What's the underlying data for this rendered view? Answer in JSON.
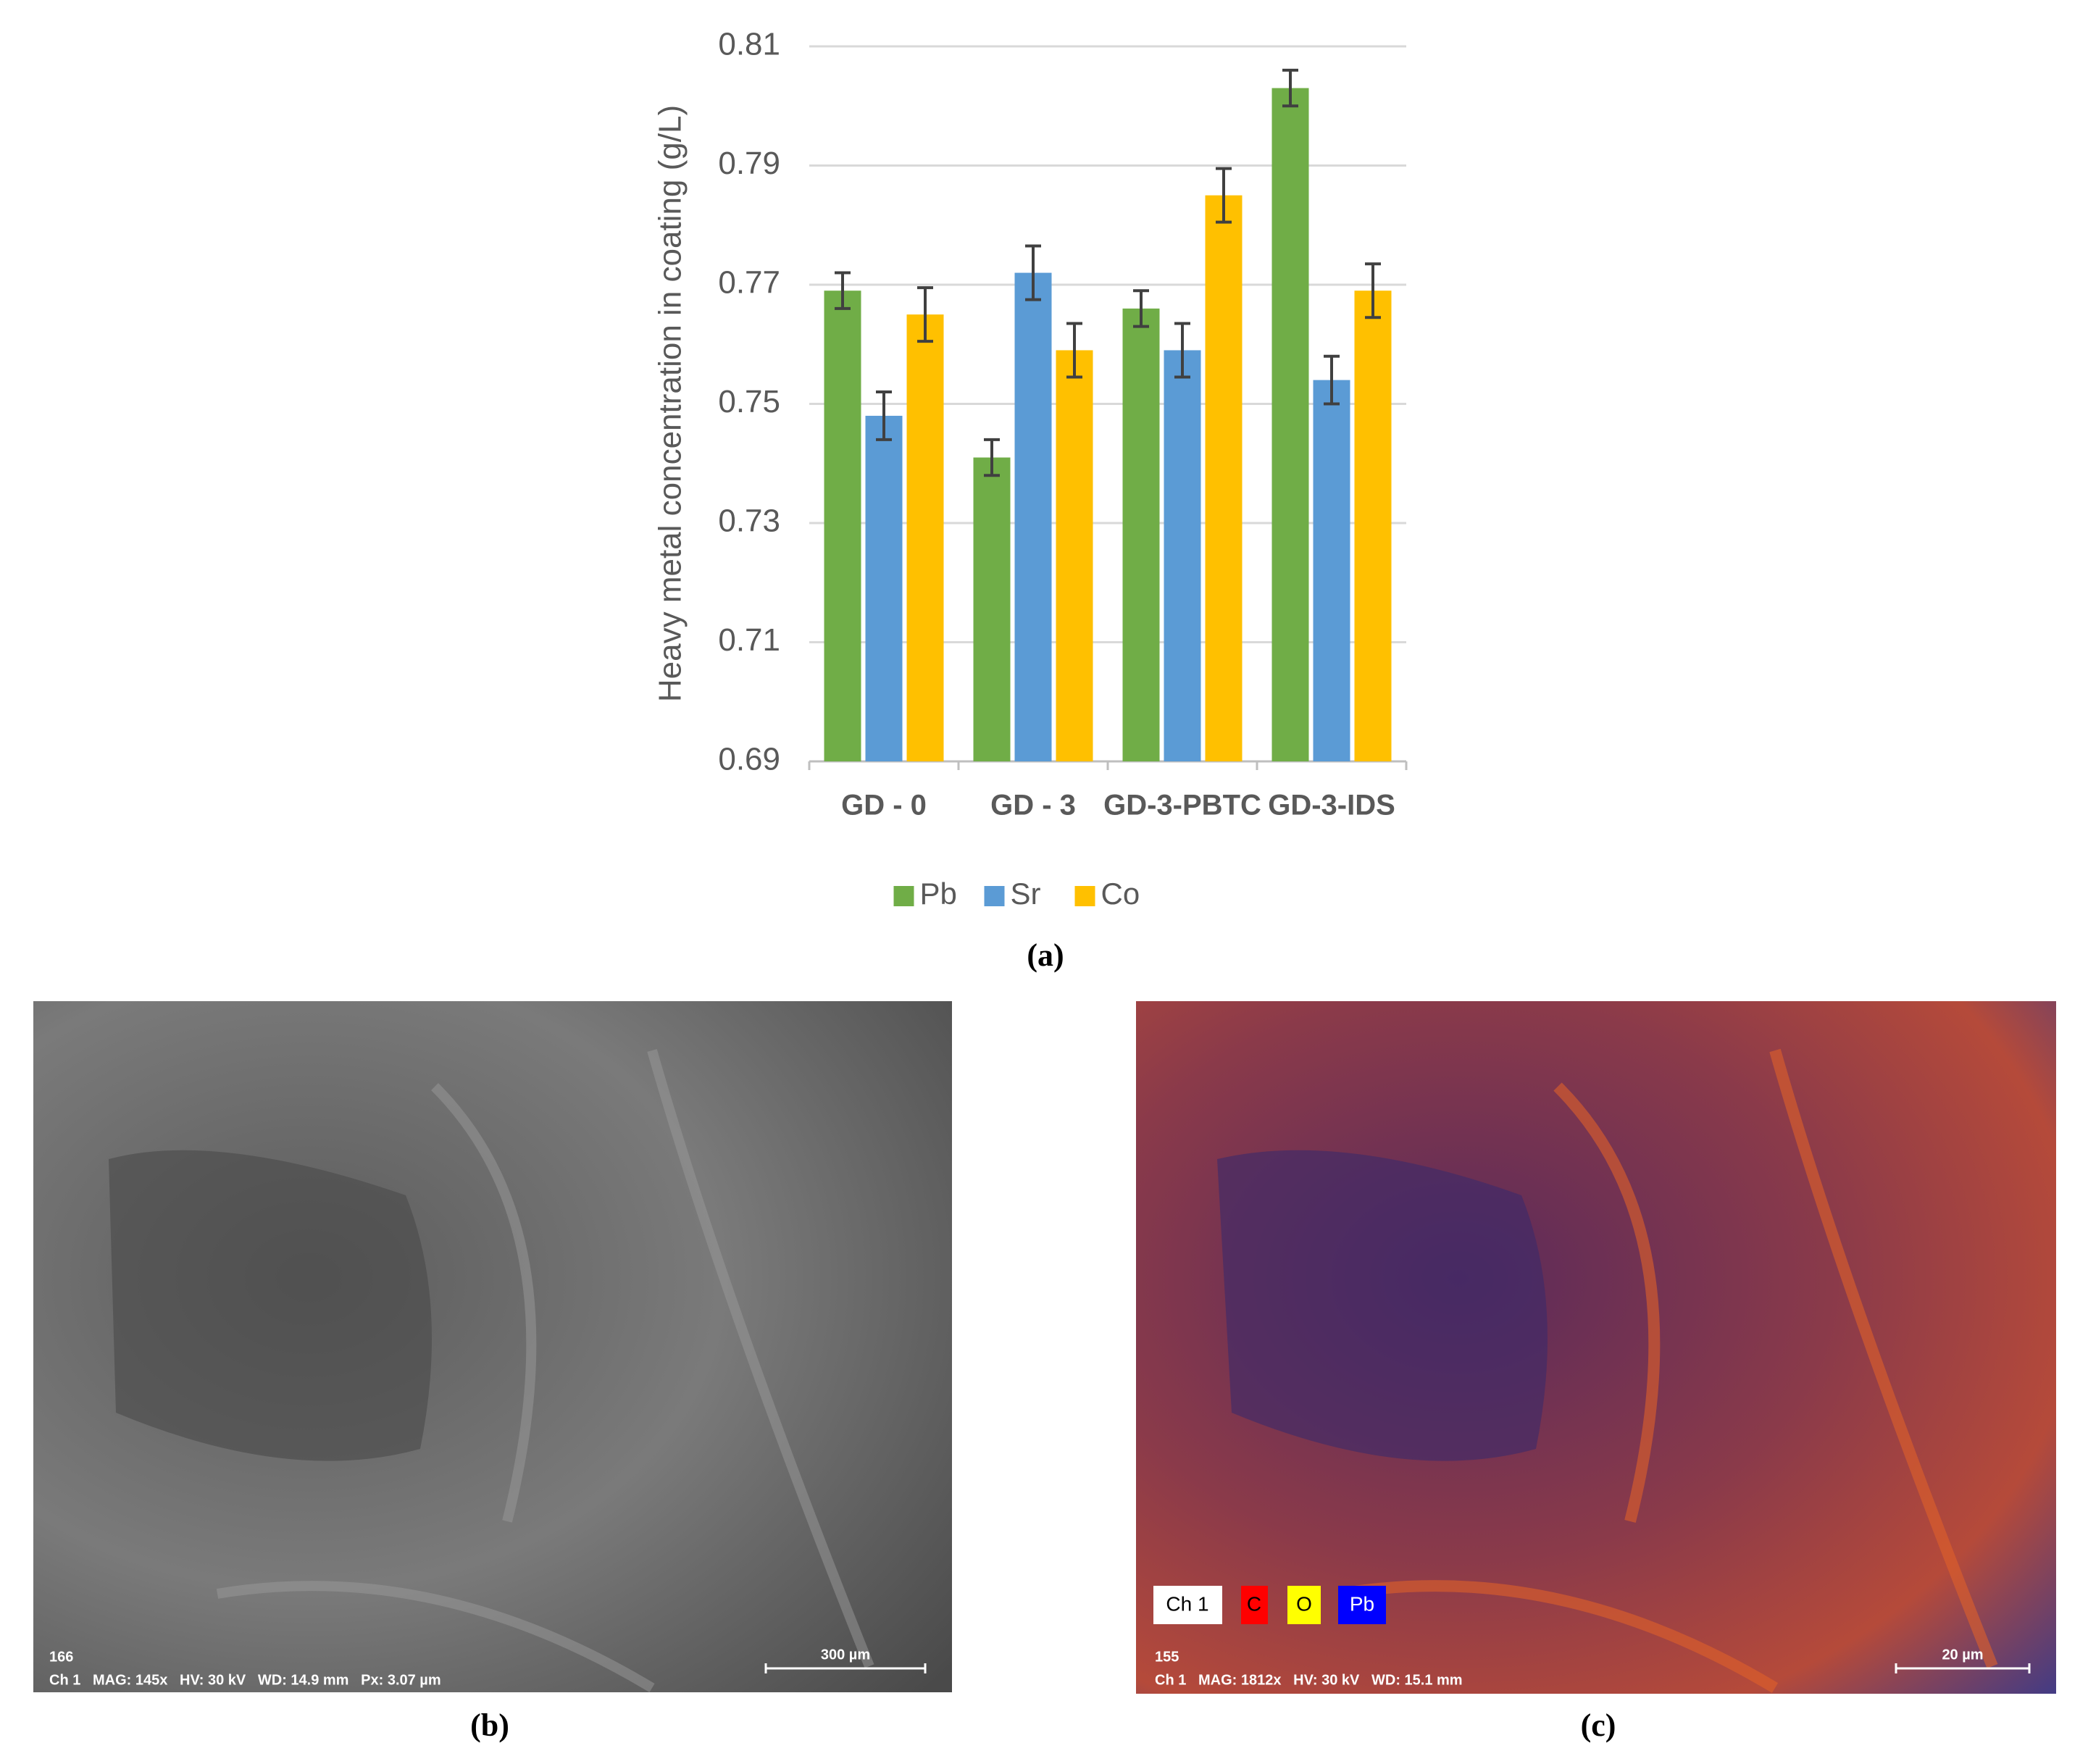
{
  "chart_data": {
    "type": "bar",
    "y_label": "Heavy metal concentration in coating (g/L)",
    "categories": [
      "GD - 0",
      "GD - 3",
      "GD-3-PBTC",
      "GD-3-IDS"
    ],
    "series": [
      {
        "name": "Pb",
        "color": "#70ad47",
        "values": [
          0.769,
          0.741,
          0.766,
          0.803
        ],
        "errors": [
          0.003,
          0.003,
          0.003,
          0.003
        ]
      },
      {
        "name": "Sr",
        "color": "#5b9bd5",
        "values": [
          0.748,
          0.772,
          0.759,
          0.754
        ],
        "errors": [
          0.004,
          0.0045,
          0.0045,
          0.004
        ]
      },
      {
        "name": "Co",
        "color": "#ffc000",
        "values": [
          0.765,
          0.759,
          0.785,
          0.769
        ],
        "errors": [
          0.0045,
          0.0045,
          0.0045,
          0.0045
        ]
      }
    ],
    "ylim": [
      0.69,
      0.81
    ],
    "yticks": [
      0.69,
      0.71,
      0.73,
      0.75,
      0.77,
      0.79,
      0.81
    ],
    "grid": true,
    "legend": "bottom"
  },
  "panels": {
    "a": {
      "label": "(a)"
    },
    "b": {
      "label": "(b)",
      "id": "166",
      "info": "Ch 1   MAG: 145x   HV: 30 kV   WD: 14.9 mm   Px: 3.07 µm",
      "scale": "300 µm"
    },
    "c": {
      "label": "(c)",
      "id": "155",
      "info": "Ch 1   MAG: 1812x   HV: 30 kV   WD: 15.1 mm",
      "scale": "20 µm",
      "legend": [
        "Ch 1",
        "C",
        "O",
        "Pb"
      ]
    }
  }
}
